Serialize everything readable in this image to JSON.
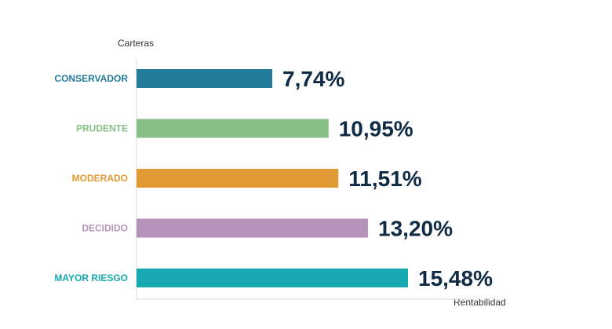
{
  "chart_data": {
    "type": "bar",
    "orientation": "horizontal",
    "title": "",
    "ylabel": "Carteras",
    "xlabel": "Rentabilidad",
    "xlim": [
      0,
      20
    ],
    "grid": false,
    "legend": "none",
    "categories": [
      "CONSERVADOR",
      "PRUDENTE",
      "MODERADO",
      "DECIDIDO",
      "MAYOR RIESGO"
    ],
    "values": [
      7.74,
      10.95,
      11.51,
      13.2,
      15.48
    ],
    "value_labels": [
      "7,74%",
      "10,95%",
      "11,51%",
      "13,20%",
      "15,48%"
    ],
    "colors": [
      "#237b9a",
      "#86c085",
      "#e29a34",
      "#b792bb",
      "#16a9af"
    ]
  }
}
